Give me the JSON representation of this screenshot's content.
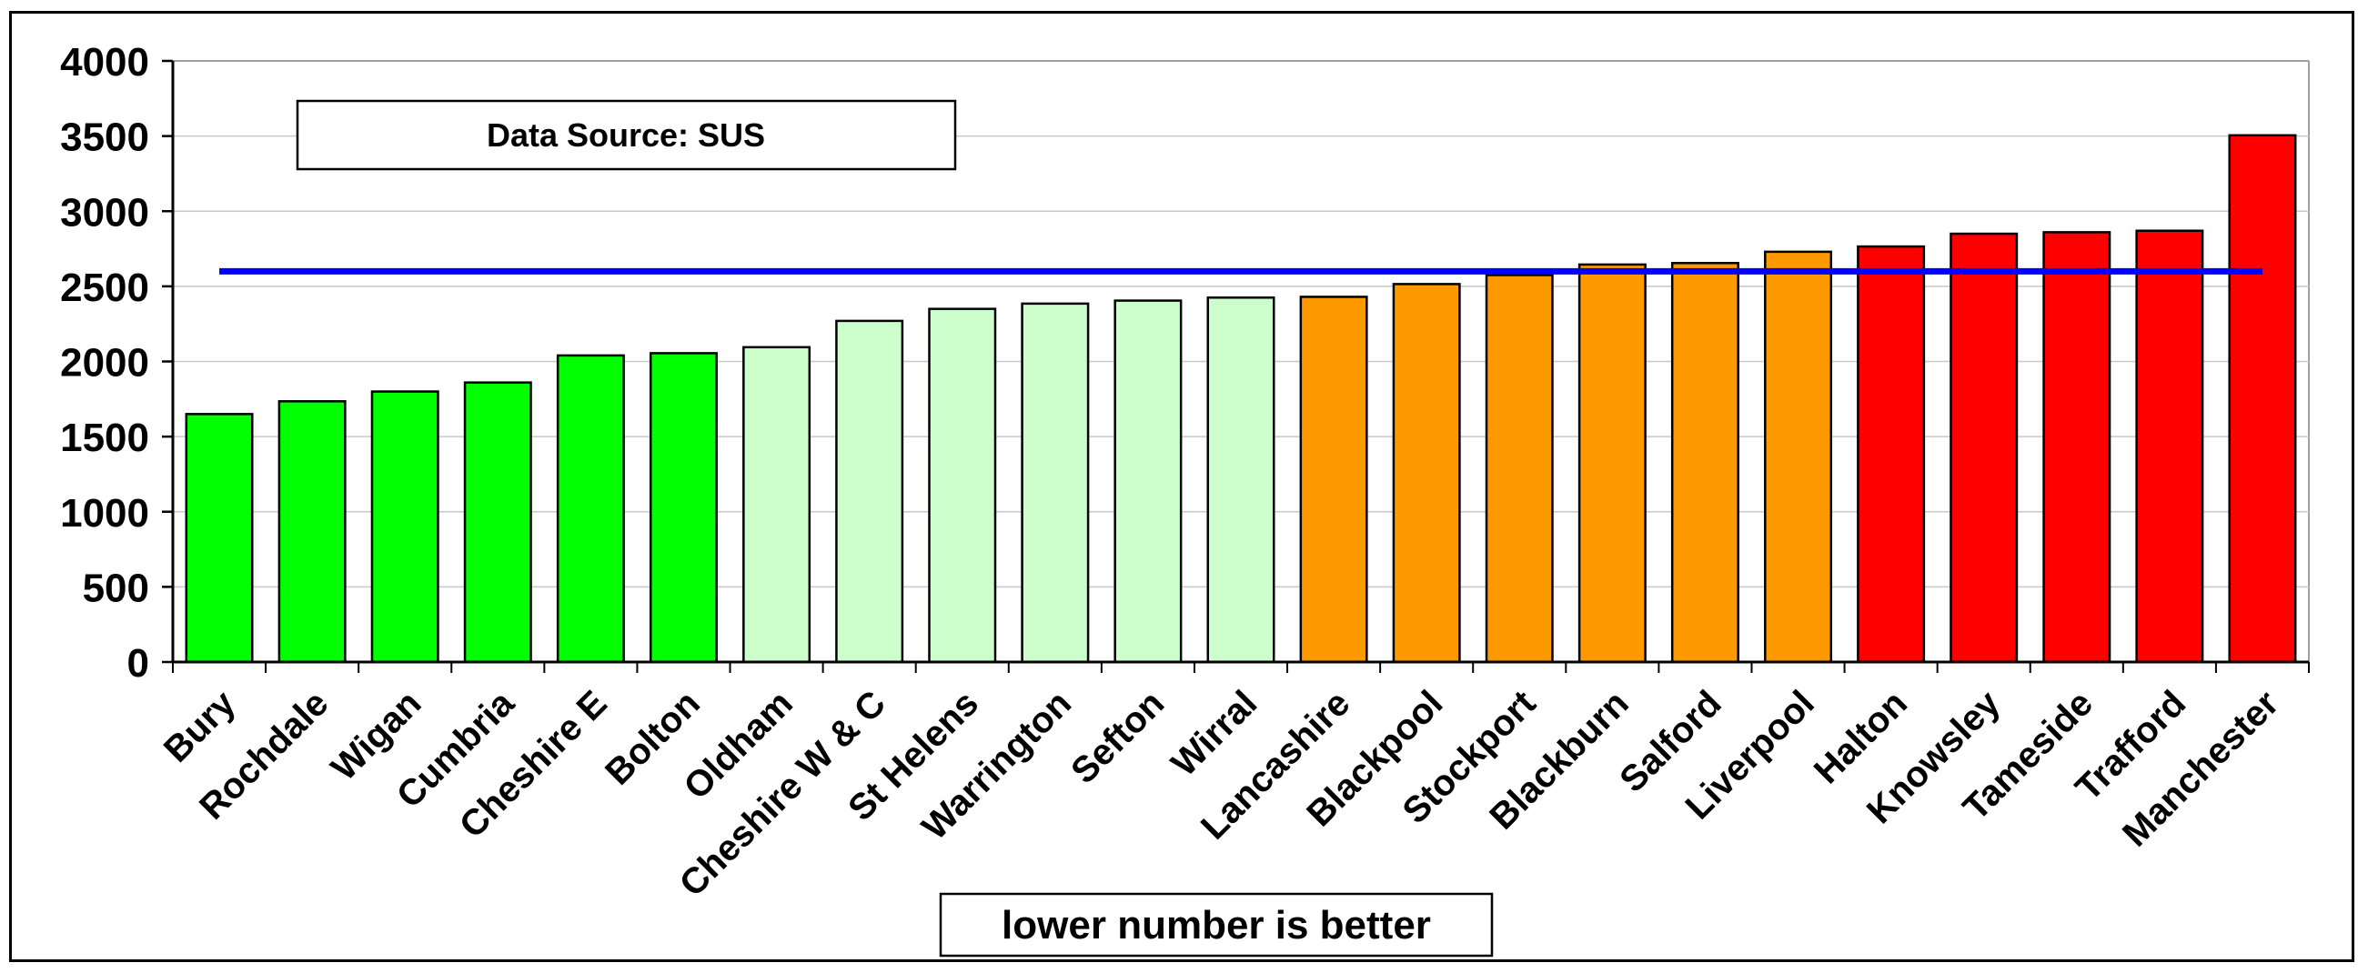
{
  "chart_data": {
    "type": "bar",
    "categories": [
      "Bury",
      "Rochdale",
      "Wigan",
      "Cumbria",
      "Cheshire E",
      "Bolton",
      "Oldham",
      "Cheshire W & C",
      "St Helens",
      "Warrington",
      "Sefton",
      "Wirral",
      "Lancashire",
      "Blackpool",
      "Stockport",
      "Blackburn",
      "Salford",
      "Liverpool",
      "Halton",
      "Knowsley",
      "Tameside",
      "Trafford",
      "Manchester"
    ],
    "values": [
      1650,
      1735,
      1800,
      1860,
      2040,
      2055,
      2095,
      2270,
      2350,
      2385,
      2405,
      2425,
      2430,
      2515,
      2575,
      2645,
      2655,
      2730,
      2765,
      2850,
      2860,
      2870,
      3505
    ],
    "colors": [
      "#00ff00",
      "#00ff00",
      "#00ff00",
      "#00ff00",
      "#00ff00",
      "#00ff00",
      "#ccffcc",
      "#ccffcc",
      "#ccffcc",
      "#ccffcc",
      "#ccffcc",
      "#ccffcc",
      "#ff9900",
      "#ff9900",
      "#ff9900",
      "#ff9900",
      "#ff9900",
      "#ff9900",
      "#ff0000",
      "#ff0000",
      "#ff0000",
      "#ff0000",
      "#ff0000"
    ],
    "reference_line": {
      "value": 2600,
      "color": "#0000ff"
    },
    "ylim": [
      0,
      4000
    ],
    "yticks": [
      0,
      500,
      1000,
      1500,
      2000,
      2500,
      3000,
      3500,
      4000
    ],
    "grid": true,
    "title": "",
    "xlabel": "",
    "ylabel": "",
    "source_note": "Data Source: SUS",
    "footnote": "lower number is better"
  }
}
